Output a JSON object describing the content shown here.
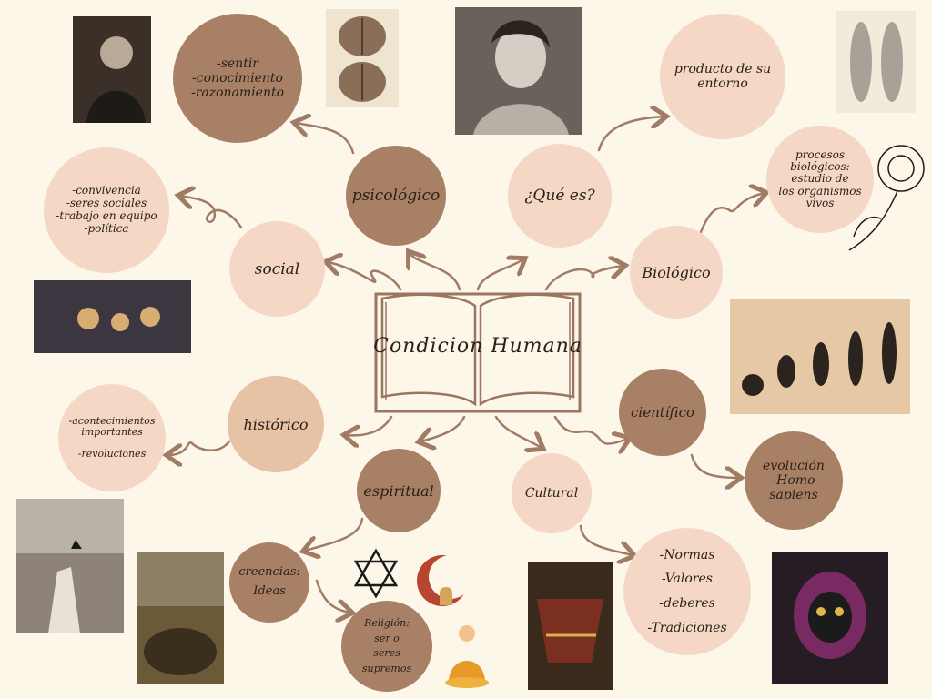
{
  "center": {
    "title": "Condicion Humana"
  },
  "nodes": {
    "psicologico": "psicológico",
    "psicologico_detail": "-sentir\n-conocimiento\n-razonamiento",
    "que_es": "¿Qué es?",
    "que_es_detail": "producto de su\nentorno",
    "biologico": "Biológico",
    "biologico_detail": "procesos\nbiológicos:\nestudio de\nlos organismos\nvivos",
    "social": "social",
    "social_detail": "-convivencia\n-seres sociales\n-trabajo en equipo\n-política",
    "historico": "histórico",
    "historico_detail": "-acontecimientos\nimportantes\n\n-revoluciones",
    "cientifico": "científico",
    "cientifico_detail": "evolución\n-Homo sapiens",
    "espiritual": "espiritual",
    "creencias": "creencias:\nIdeas",
    "religion": "Religión:\nser o\nseres supremos",
    "cultural": "Cultural",
    "cultural_detail": "-Normas\n-Valores\n-deberes\n-Tradiciones"
  },
  "colors": {
    "background": "#fdf7ea",
    "dark_circle": "#a88066",
    "mid_circle": "#e7c2a5",
    "light_circle": "#f4d7c5",
    "arrow": "#a07c66"
  }
}
